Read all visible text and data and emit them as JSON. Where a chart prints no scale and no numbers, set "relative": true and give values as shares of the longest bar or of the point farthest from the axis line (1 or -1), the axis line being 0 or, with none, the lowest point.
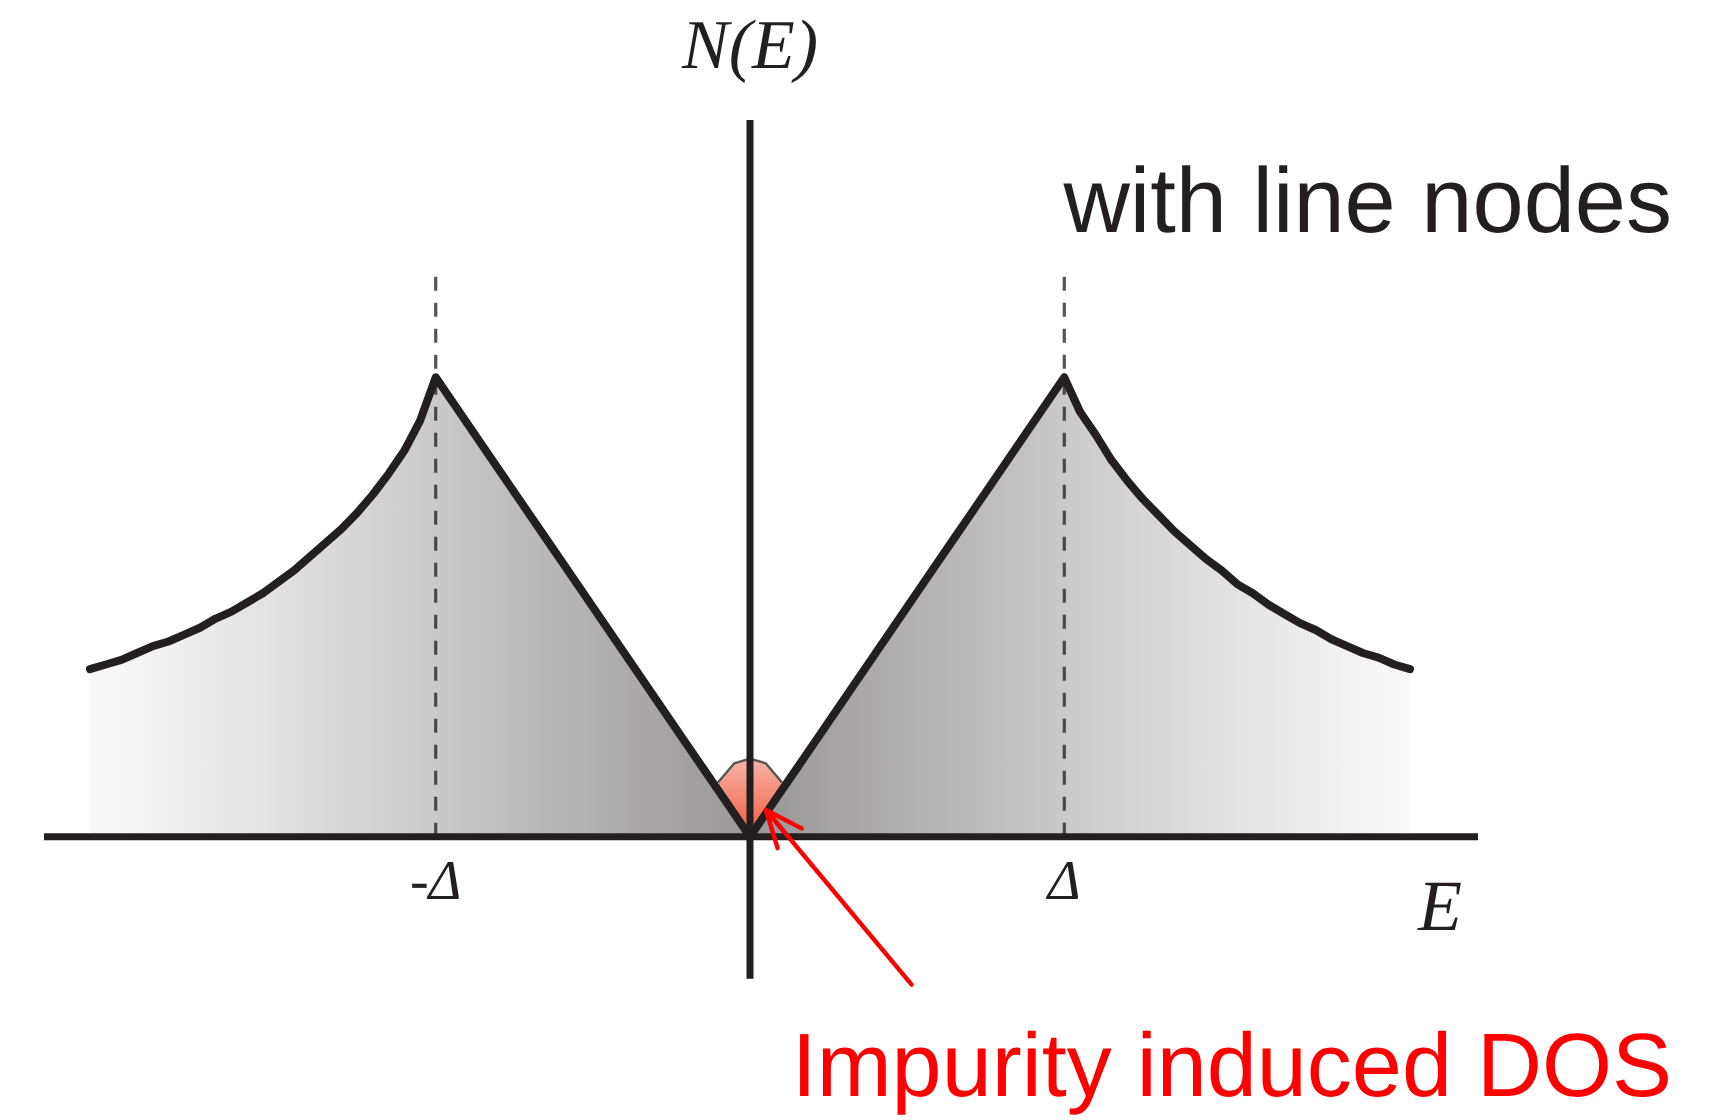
{
  "chart_data": {
    "type": "area",
    "title": "with line nodes",
    "xlabel": "E",
    "ylabel": "N(E)",
    "relative": true,
    "categories": [
      null,
      null,
      null,
      null,
      null,
      null,
      null,
      null,
      null,
      null,
      null,
      null,
      null,
      null,
      null,
      null,
      null,
      null,
      null,
      null,
      null,
      null,
      "-Δ",
      null,
      null,
      null,
      null,
      null,
      null,
      null,
      null,
      null,
      null,
      null,
      null,
      null,
      null,
      null,
      null,
      null,
      null,
      null,
      null,
      null,
      null,
      null,
      null,
      null,
      null,
      null,
      null,
      null,
      null,
      null,
      null,
      null,
      null,
      null,
      null,
      null,
      null,
      null,
      "Δ",
      null,
      null,
      null,
      null,
      null,
      null,
      null,
      null,
      null,
      null,
      null,
      null,
      null,
      null,
      null,
      null,
      null,
      null,
      null,
      null,
      null,
      null
    ],
    "series": [
      {
        "color": "#231f20",
        "values": [
          0.365,
          0.375,
          0.385,
          0.4,
          0.415,
          0.425,
          0.44,
          0.455,
          0.475,
          0.49,
          0.51,
          0.53,
          0.555,
          0.58,
          0.61,
          0.64,
          0.67,
          0.705,
          0.745,
          0.79,
          0.84,
          0.905,
          1,
          0.95,
          0.9,
          0.85,
          0.8,
          0.75,
          0.7,
          0.65,
          0.6,
          0.55,
          0.5,
          0.45,
          0.4,
          0.35,
          0.3,
          0.25,
          0.2,
          0.15,
          0.1,
          0.05,
          0,
          0.05,
          0.1,
          0.15,
          0.2,
          0.25,
          0.3,
          0.35,
          0.4,
          0.45,
          0.5,
          0.55,
          0.6,
          0.65,
          0.7,
          0.75,
          0.8,
          0.85,
          0.9,
          0.95,
          1,
          0.925,
          0.875,
          0.82,
          0.775,
          0.735,
          0.7,
          0.665,
          0.635,
          0.605,
          0.58,
          0.55,
          0.53,
          0.505,
          0.485,
          0.465,
          0.45,
          0.43,
          0.415,
          0.4,
          0.39,
          0.375,
          0.365
        ]
      },
      {
        "color": "#ef5a3c",
        "values": [
          null,
          null,
          null,
          null,
          null,
          null,
          null,
          null,
          null,
          null,
          null,
          null,
          null,
          null,
          null,
          null,
          null,
          null,
          null,
          null,
          null,
          null,
          null,
          null,
          null,
          null,
          null,
          null,
          null,
          null,
          null,
          null,
          null,
          null,
          null,
          null,
          null,
          null,
          null,
          null,
          0.12,
          0.16,
          0.17,
          0.16,
          0.12,
          null,
          null,
          null,
          null,
          null,
          null,
          null,
          null,
          null,
          null,
          null,
          null,
          null,
          null,
          null,
          null,
          null,
          null,
          null,
          null,
          null,
          null,
          null,
          null,
          null,
          null,
          null,
          null,
          null,
          null,
          null,
          null,
          null,
          null,
          null,
          null,
          null,
          null,
          null,
          null
        ]
      }
    ],
    "ref_lines": [
      {
        "axis": "x",
        "value": "-Δ",
        "color": "#555555",
        "line_style": "dashed"
      },
      {
        "axis": "x",
        "value": "Δ",
        "color": "#555555",
        "line_style": "dashed"
      }
    ],
    "annotations": [
      "Impurity induced DOS"
    ],
    "legend": false,
    "grid": false,
    "marker": "none",
    "tick_labels": "x"
  }
}
